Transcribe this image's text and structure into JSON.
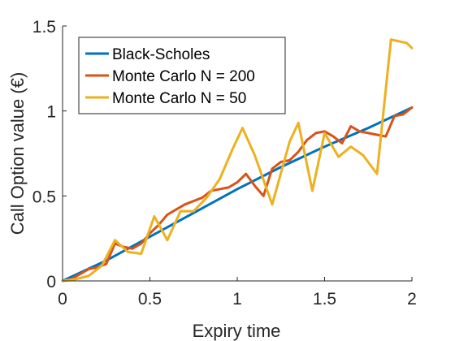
{
  "chart_data": {
    "type": "line",
    "title": "",
    "xlabel": "Expiry time",
    "ylabel": "Call Option value (€)",
    "xlim": [
      0,
      2
    ],
    "ylim": [
      0,
      1.5
    ],
    "xticks": [
      0,
      0.5,
      1,
      1.5,
      2
    ],
    "xtick_labels": [
      "0",
      "0.5",
      "1",
      "1.5",
      "2"
    ],
    "yticks": [
      0,
      0.5,
      1,
      1.5
    ],
    "ytick_labels": [
      "0",
      "0.5",
      "1",
      "1.5"
    ],
    "grid": false,
    "legend_position": "top-left",
    "series": [
      {
        "name": "Black-Scholes",
        "color": "#0072BD",
        "x": [
          0,
          0.25,
          0.5,
          0.75,
          1,
          1.25,
          1.5,
          1.75,
          2
        ],
        "y": [
          0,
          0.12,
          0.26,
          0.4,
          0.54,
          0.67,
          0.79,
          0.9,
          1.02
        ]
      },
      {
        "name": "Monte Carlo N = 200",
        "color": "#D95319",
        "x": [
          0,
          0.05,
          0.1,
          0.15,
          0.2,
          0.25,
          0.3,
          0.35,
          0.4,
          0.45,
          0.5,
          0.55,
          0.6,
          0.65,
          0.7,
          0.75,
          0.8,
          0.85,
          0.9,
          0.95,
          1,
          1.05,
          1.1,
          1.15,
          1.2,
          1.25,
          1.3,
          1.35,
          1.4,
          1.45,
          1.5,
          1.55,
          1.6,
          1.65,
          1.7,
          1.75,
          1.8,
          1.85,
          1.9,
          1.95,
          2
        ],
        "y": [
          0,
          0.01,
          0.04,
          0.07,
          0.08,
          0.1,
          0.22,
          0.2,
          0.19,
          0.22,
          0.28,
          0.33,
          0.39,
          0.42,
          0.45,
          0.47,
          0.49,
          0.53,
          0.54,
          0.55,
          0.58,
          0.63,
          0.56,
          0.5,
          0.66,
          0.7,
          0.71,
          0.76,
          0.83,
          0.87,
          0.88,
          0.85,
          0.81,
          0.91,
          0.88,
          0.87,
          0.86,
          0.85,
          0.97,
          0.98,
          1.02
        ]
      },
      {
        "name": "Monte Carlo N = 50",
        "color": "#EDB120",
        "x": [
          0,
          0.075,
          0.15,
          0.225,
          0.3,
          0.375,
          0.45,
          0.525,
          0.6,
          0.675,
          0.75,
          0.825,
          0.9,
          0.975,
          1.03,
          1.1,
          1.2,
          1.3,
          1.35,
          1.43,
          1.5,
          1.58,
          1.65,
          1.72,
          1.8,
          1.88,
          1.97,
          2
        ],
        "y": [
          0,
          0.01,
          0.03,
          0.09,
          0.24,
          0.17,
          0.16,
          0.38,
          0.24,
          0.41,
          0.41,
          0.49,
          0.6,
          0.78,
          0.9,
          0.74,
          0.45,
          0.82,
          0.93,
          0.53,
          0.87,
          0.73,
          0.79,
          0.74,
          0.63,
          1.42,
          1.4,
          1.37
        ]
      }
    ]
  }
}
